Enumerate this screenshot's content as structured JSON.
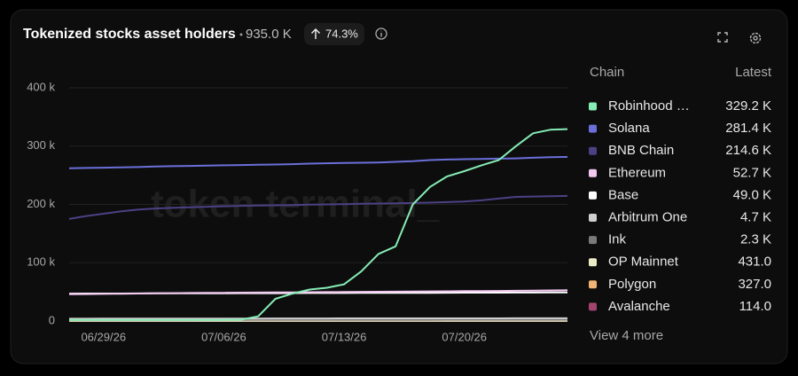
{
  "chart_data": {
    "type": "line",
    "title": "Tokenized stocks asset holders",
    "total_label": "935.0 K",
    "change_label": "74.3%",
    "watermark": "token terminal_",
    "legend_headers": [
      "Chain",
      "Latest"
    ],
    "more_label": "View 4 more",
    "x": [
      "06/27/26",
      "06/28/26",
      "06/29/26",
      "06/30/26",
      "07/01/26",
      "07/02/26",
      "07/03/26",
      "07/04/26",
      "07/05/26",
      "07/06/26",
      "07/07/26",
      "07/08/26",
      "07/09/26",
      "07/10/26",
      "07/11/26",
      "07/12/26",
      "07/13/26",
      "07/14/26",
      "07/15/26",
      "07/16/26",
      "07/17/26",
      "07/18/26",
      "07/19/26",
      "07/20/26",
      "07/21/26",
      "07/22/26",
      "07/23/26",
      "07/24/26",
      "07/25/26",
      "07/26/26"
    ],
    "xticks": [
      "06/29/26",
      "07/06/26",
      "07/13/26",
      "07/20/26"
    ],
    "ylim": [
      0,
      400000
    ],
    "yticks": [
      0,
      {
        "value": 100000,
        "label": "100 k"
      },
      {
        "value": 200000,
        "label": "200 k"
      },
      {
        "value": 300000,
        "label": "300 k"
      },
      {
        "value": 400000,
        "label": "400 k"
      }
    ],
    "grid": true,
    "series": [
      {
        "name": "Robinhood …",
        "color": "#86ecb6",
        "latest_label": "329.2 K",
        "values": [
          2000,
          2000,
          2000,
          2000,
          2000,
          2000,
          2000,
          2000,
          2000,
          2000,
          2300,
          8000,
          38000,
          47000,
          54000,
          57000,
          63000,
          85000,
          115000,
          128000,
          200000,
          230000,
          248000,
          257000,
          267000,
          276000,
          300000,
          322000,
          328000,
          329200
        ]
      },
      {
        "name": "Solana",
        "color": "#6a6fd8",
        "latest_label": "281.4 K",
        "values": [
          262000,
          262500,
          263000,
          263500,
          264000,
          265000,
          265500,
          266000,
          266500,
          267000,
          267500,
          268000,
          268500,
          269000,
          270000,
          270500,
          271000,
          271500,
          272000,
          273000,
          274000,
          276000,
          277000,
          277500,
          278000,
          278500,
          279000,
          280000,
          281000,
          281400
        ]
      },
      {
        "name": "BNB Chain",
        "color": "#4b4185",
        "latest_label": "214.6 K",
        "values": [
          175000,
          180000,
          184000,
          188000,
          191000,
          193000,
          194000,
          195000,
          196000,
          197000,
          197500,
          198000,
          198500,
          199000,
          199500,
          200000,
          200500,
          201000,
          201500,
          202000,
          202500,
          203000,
          204000,
          205000,
          207000,
          210000,
          213000,
          213500,
          214000,
          214600
        ]
      },
      {
        "name": "Ethereum",
        "color": "#f3c9f1",
        "latest_label": "52.7 K",
        "values": [
          46000,
          46300,
          46600,
          46900,
          47200,
          47500,
          47800,
          48000,
          48200,
          48400,
          48600,
          48800,
          49000,
          49200,
          49400,
          49600,
          49800,
          50000,
          50200,
          50400,
          50600,
          50800,
          51000,
          51200,
          51400,
          51600,
          51900,
          52200,
          52500,
          52700
        ]
      },
      {
        "name": "Base",
        "color": "#ffffff",
        "latest_label": "49.0 K",
        "values": [
          47000,
          47100,
          47200,
          47200,
          47300,
          47400,
          47400,
          47500,
          47600,
          47600,
          47700,
          47800,
          47800,
          47900,
          48000,
          48000,
          48100,
          48200,
          48200,
          48300,
          48400,
          48400,
          48500,
          48600,
          48600,
          48700,
          48800,
          48800,
          48900,
          49000
        ]
      },
      {
        "name": "Arbitrum One",
        "color": "#cfcfcf",
        "latest_label": "4.7 K",
        "values": [
          4000,
          4000,
          4100,
          4100,
          4100,
          4200,
          4200,
          4200,
          4300,
          4300,
          4300,
          4300,
          4400,
          4400,
          4400,
          4400,
          4500,
          4500,
          4500,
          4500,
          4500,
          4600,
          4600,
          4600,
          4600,
          4600,
          4700,
          4700,
          4700,
          4700
        ]
      },
      {
        "name": "Ink",
        "color": "#7a7a7a",
        "latest_label": "2.3 K",
        "values": [
          1900,
          1900,
          1900,
          2000,
          2000,
          2000,
          2000,
          2000,
          2100,
          2100,
          2100,
          2100,
          2100,
          2100,
          2200,
          2200,
          2200,
          2200,
          2200,
          2200,
          2200,
          2200,
          2300,
          2300,
          2300,
          2300,
          2300,
          2300,
          2300,
          2300
        ]
      },
      {
        "name": "OP Mainnet",
        "color": "#ecebc8",
        "latest_label": "431.0",
        "values": [
          380,
          380,
          385,
          385,
          390,
          390,
          395,
          395,
          400,
          400,
          400,
          405,
          405,
          410,
          410,
          410,
          415,
          415,
          415,
          420,
          420,
          420,
          425,
          425,
          425,
          428,
          428,
          430,
          430,
          431
        ]
      },
      {
        "name": "Polygon",
        "color": "#f2b474",
        "latest_label": "327.0",
        "values": [
          300,
          300,
          302,
          302,
          304,
          304,
          306,
          306,
          308,
          308,
          310,
          310,
          312,
          312,
          314,
          314,
          316,
          316,
          318,
          318,
          320,
          320,
          322,
          322,
          324,
          324,
          325,
          326,
          326,
          327
        ]
      },
      {
        "name": "Avalanche",
        "color": "#a3446f",
        "latest_label": "114.0",
        "values": [
          100,
          100,
          101,
          101,
          102,
          102,
          103,
          103,
          104,
          104,
          105,
          105,
          106,
          106,
          107,
          107,
          108,
          108,
          109,
          109,
          110,
          110,
          111,
          111,
          112,
          112,
          113,
          113,
          114,
          114
        ]
      }
    ]
  }
}
